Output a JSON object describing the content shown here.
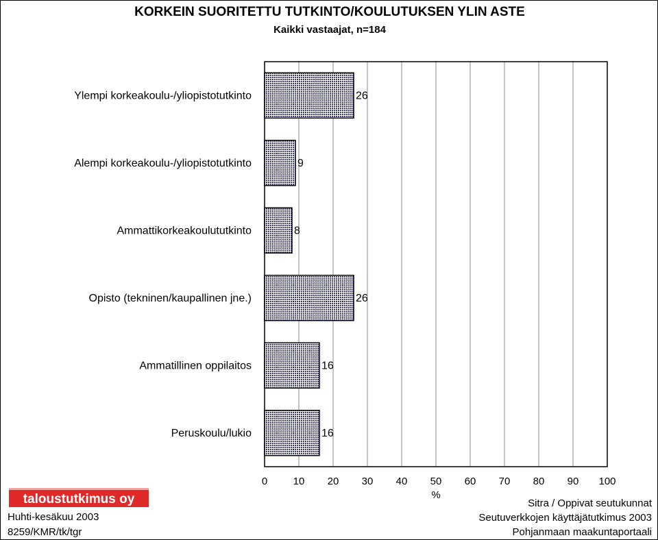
{
  "chart_data": {
    "type": "bar",
    "orientation": "horizontal",
    "title": "KORKEIN SUORITETTU TUTKINTO/KOULUTUKSEN YLIN ASTE",
    "subtitle": "Kaikki vastaajat, n=184",
    "categories": [
      "Ylempi korkeakoulu-/yliopistotutkinto",
      "Alempi korkeakoulu-/yliopistotutkinto",
      "Ammattikorkeakoulututkinto",
      "Opisto (tekninen/kaupallinen jne.)",
      "Ammatillinen oppilaitos",
      "Peruskoulu/lukio"
    ],
    "values": [
      26,
      9,
      8,
      26,
      16,
      16
    ],
    "data_labels": [
      "26",
      "9",
      "8",
      "26",
      "16",
      "16"
    ],
    "xlabel": "%",
    "xlim": [
      0,
      100
    ],
    "xticks": [
      "0",
      "10",
      "20",
      "30",
      "40",
      "50",
      "60",
      "70",
      "80",
      "90",
      "100"
    ],
    "grid": "vertical",
    "bar_color": "#3a3a7a"
  },
  "logo": "taloustutkimus oy",
  "footer_left": [
    "Huhti-kesäkuu 2003",
    "8259/KMR/tk/tgr"
  ],
  "footer_right": [
    "Sitra / Oppivat seutukunnat",
    "Seutuverkkojen käyttäjätutkimus 2003",
    "Pohjanmaan maakuntaportaali"
  ]
}
